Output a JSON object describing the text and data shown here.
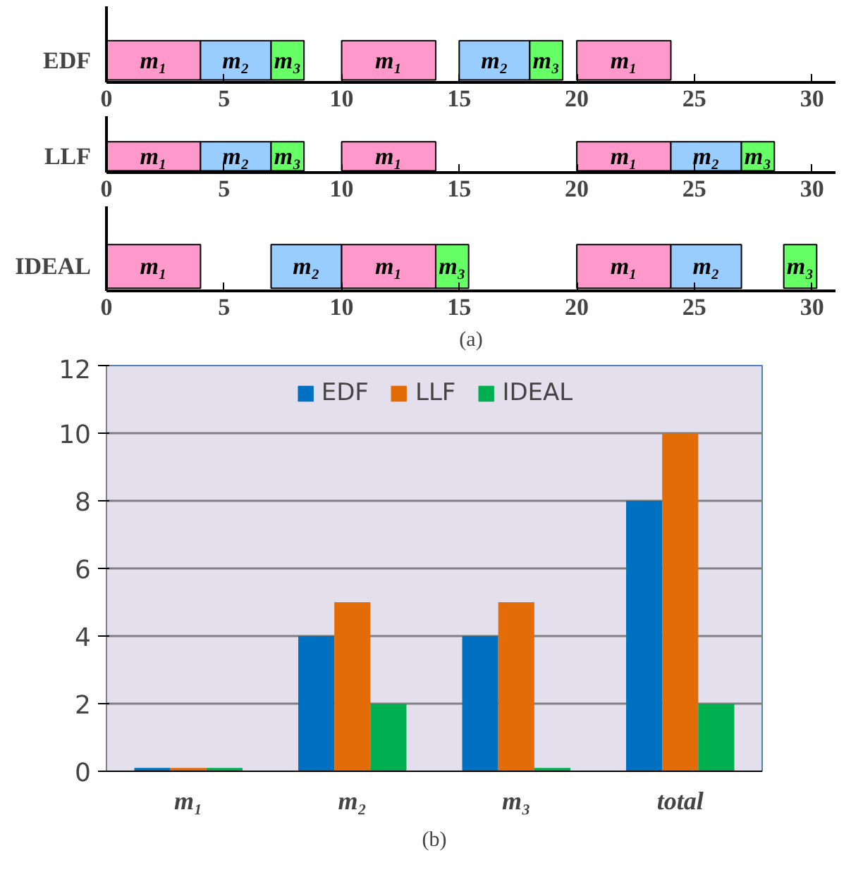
{
  "chart_data": [
    {
      "type": "bar",
      "orientation": "horizontal",
      "categories": [
        "EDF"
      ],
      "xlim": [
        0,
        31
      ],
      "xticks": [
        0,
        5,
        10,
        15,
        20,
        25,
        30
      ],
      "series": [
        {
          "color": "#ff99cc",
          "values": [
            4
          ],
          "base": [
            0
          ],
          "value_labels": [
            "m₁"
          ]
        },
        {
          "color": "#99ccff",
          "values": [
            3
          ],
          "base": [
            4
          ],
          "value_labels": [
            "m₂"
          ]
        },
        {
          "color": "#66ff66",
          "values": [
            1.4
          ],
          "base": [
            7
          ],
          "value_labels": [
            "m₃"
          ]
        },
        {
          "color": "#ff99cc",
          "values": [
            4
          ],
          "base": [
            10
          ],
          "value_labels": [
            "m₁"
          ]
        },
        {
          "color": "#99ccff",
          "values": [
            3
          ],
          "base": [
            15
          ],
          "value_labels": [
            "m₂"
          ]
        },
        {
          "color": "#66ff66",
          "values": [
            1.4
          ],
          "base": [
            18
          ],
          "value_labels": [
            "m₃"
          ]
        },
        {
          "color": "#ff99cc",
          "values": [
            4
          ],
          "base": [
            20
          ],
          "value_labels": [
            "m₁"
          ]
        }
      ]
    },
    {
      "type": "bar",
      "orientation": "horizontal",
      "categories": [
        "LLF"
      ],
      "xlim": [
        0,
        31
      ],
      "xticks": [
        0,
        5,
        10,
        15,
        20,
        25,
        30
      ],
      "series": [
        {
          "color": "#ff99cc",
          "values": [
            4
          ],
          "base": [
            0
          ],
          "value_labels": [
            "m₁"
          ]
        },
        {
          "color": "#99ccff",
          "values": [
            3
          ],
          "base": [
            4
          ],
          "value_labels": [
            "m₂"
          ]
        },
        {
          "color": "#66ff66",
          "values": [
            1.4
          ],
          "base": [
            7
          ],
          "value_labels": [
            "m₃"
          ]
        },
        {
          "color": "#ff99cc",
          "values": [
            4
          ],
          "base": [
            10
          ],
          "value_labels": [
            "m₁"
          ]
        },
        {
          "color": "#ff99cc",
          "values": [
            4
          ],
          "base": [
            20
          ],
          "value_labels": [
            "m₁"
          ]
        },
        {
          "color": "#99ccff",
          "values": [
            3
          ],
          "base": [
            24
          ],
          "value_labels": [
            "m₂"
          ]
        },
        {
          "color": "#66ff66",
          "values": [
            1.4
          ],
          "base": [
            27
          ],
          "value_labels": [
            "m₃"
          ]
        }
      ]
    },
    {
      "type": "bar",
      "orientation": "horizontal",
      "categories": [
        "IDEAL"
      ],
      "xlim": [
        0,
        31
      ],
      "xticks": [
        0,
        5,
        10,
        15,
        20,
        25,
        30
      ],
      "annotations": [
        "(a)"
      ],
      "series": [
        {
          "color": "#ff99cc",
          "values": [
            4
          ],
          "base": [
            0
          ],
          "value_labels": [
            "m₁"
          ]
        },
        {
          "color": "#99ccff",
          "values": [
            3
          ],
          "base": [
            7
          ],
          "value_labels": [
            "m₂"
          ]
        },
        {
          "color": "#ff99cc",
          "values": [
            4
          ],
          "base": [
            10
          ],
          "value_labels": [
            "m₁"
          ]
        },
        {
          "color": "#66ff66",
          "values": [
            1.4
          ],
          "base": [
            14
          ],
          "value_labels": [
            "m₃"
          ]
        },
        {
          "color": "#ff99cc",
          "values": [
            4
          ],
          "base": [
            20
          ],
          "value_labels": [
            "m₁"
          ]
        },
        {
          "color": "#99ccff",
          "values": [
            3
          ],
          "base": [
            24
          ],
          "value_labels": [
            "m₂"
          ]
        },
        {
          "color": "#66ff66",
          "values": [
            1.4
          ],
          "base": [
            28.8
          ],
          "value_labels": [
            "m₃"
          ]
        }
      ]
    },
    {
      "type": "bar",
      "categories": [
        "m₁",
        "m₂",
        "m₃",
        "total"
      ],
      "ylim": [
        0,
        12
      ],
      "yticks": [
        0,
        2,
        4,
        6,
        8,
        10,
        12
      ],
      "grid": "y",
      "legend": "top",
      "annotations": [
        "(b)"
      ],
      "series": [
        {
          "name": "EDF",
          "color": "#0070c0",
          "values": [
            0.1,
            4,
            4,
            8
          ]
        },
        {
          "name": "LLF",
          "color": "#e36c09",
          "values": [
            0.1,
            5,
            5,
            10
          ]
        },
        {
          "name": "IDEAL",
          "color": "#00b050",
          "values": [
            0.1,
            2,
            0.1,
            2
          ]
        }
      ]
    }
  ]
}
